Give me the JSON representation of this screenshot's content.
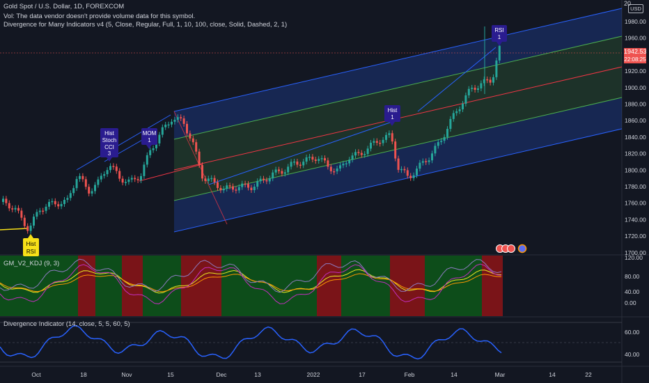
{
  "header": {
    "symbol_line": "Gold Spot / U.S. Dollar, 1D, FOREXCOM",
    "vol_line": "Vol: The data vendor doesn't provide volume data for this symbol.",
    "indicator_line": "Divergence for Many Indicators v4 (5, Close, Regular, Full, 1, 10, 100, close, Solid, Dashed, 2, 1)"
  },
  "price_axis": {
    "currency": "USD",
    "top_partial": "20",
    "labels": [
      "1980.00",
      "1960.00",
      "1940.00",
      "1920.00",
      "1900.00",
      "1880.00",
      "1860.00",
      "1840.00",
      "1820.00",
      "1800.00",
      "1780.00",
      "1760.00",
      "1740.00",
      "1720.00",
      "1700.00"
    ],
    "last_price": "1942.53",
    "countdown": "22:08:25"
  },
  "kdj_pane": {
    "label": "GM_V2_KDJ (9, 3)",
    "labels": [
      "120.00",
      "80.00",
      "40.00",
      "0.00"
    ]
  },
  "div_pane": {
    "label": "Divergence Indicator (14, close, 5, 5, 60, 5)",
    "labels": [
      "60.00",
      "40.00"
    ]
  },
  "time_axis": {
    "labels": [
      "Oct",
      "18",
      "Nov",
      "15",
      "Dec",
      "13",
      "2022",
      "17",
      "Feb",
      "14",
      "Mar",
      "14",
      "22"
    ]
  },
  "annotations": {
    "hist_rsi": [
      "Hist",
      "RSI"
    ],
    "hist_stoch_cci": [
      "Hist",
      "Stoch",
      "CCI",
      "3"
    ],
    "mom": [
      "MOM",
      "1"
    ],
    "hist_1": [
      "Hist",
      "1"
    ],
    "rsi_1": [
      "RSI",
      "1"
    ]
  },
  "colors": {
    "background": "#131722",
    "bull": "#26a69a",
    "bear": "#ef5350",
    "channel_blue": "#2962ff",
    "channel_green": "#4caf50",
    "channel_mid": "#f23645",
    "bear_label": "#2a1c8f",
    "bull_label": "#f7e018",
    "kdj_green_bg": "#0d4d1a",
    "kdj_red_bg": "#7a1418",
    "div_line": "#2962ff"
  }
}
